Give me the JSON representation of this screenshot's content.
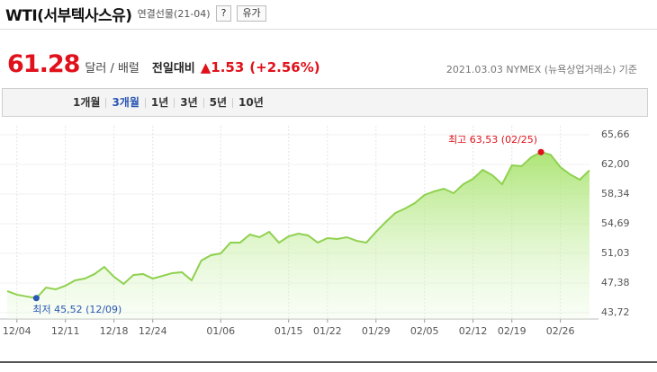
{
  "header": {
    "title": "WTI(서부텍사스유)",
    "subtitle": "연결선물(21-04)",
    "help": "?",
    "link": "유가"
  },
  "price": {
    "value": "61.28",
    "unit": "달러 / 배럴",
    "change_label": "전일대비",
    "change": "▲1.53",
    "change_pct": "(+2.56%)",
    "date": "2021.03.03",
    "source": "NYMEX (뉴욕상업거래소) 기준"
  },
  "tabs": [
    "1개월",
    "3개월",
    "1년",
    "3년",
    "5년",
    "10년"
  ],
  "active_tab": "3개월",
  "chart_data": {
    "type": "area",
    "categories": [
      null,
      "12/04",
      null,
      null,
      null,
      null,
      "12/11",
      null,
      null,
      null,
      null,
      "12/18",
      null,
      null,
      null,
      "12/24",
      null,
      null,
      null,
      null,
      null,
      null,
      "01/06",
      null,
      null,
      null,
      null,
      null,
      null,
      "01/15",
      null,
      null,
      null,
      "01/22",
      null,
      null,
      null,
      null,
      "01/29",
      null,
      null,
      null,
      null,
      "02/05",
      null,
      null,
      null,
      null,
      "02/12",
      null,
      null,
      null,
      "02/19",
      null,
      null,
      null,
      null,
      "02/26",
      null,
      null,
      null
    ],
    "series": [
      {
        "color": "#8fd14f",
        "values": [
          46.38,
          45.94,
          45.72,
          45.52,
          46.82,
          46.6,
          47.05,
          47.71,
          47.93,
          48.49,
          49.37,
          48.15,
          47.27,
          48.37,
          48.49,
          47.93,
          48.26,
          48.6,
          48.71,
          47.71,
          50.15,
          50.81,
          51.03,
          52.36,
          52.36,
          53.36,
          53.03,
          53.69,
          52.36,
          53.14,
          53.47,
          53.25,
          52.36,
          52.92,
          52.81,
          53.03,
          52.59,
          52.36,
          53.69,
          54.91,
          56.02,
          56.57,
          57.24,
          58.24,
          58.68,
          59.01,
          58.46,
          59.57,
          60.23,
          61.34,
          60.67,
          59.57,
          61.89,
          61.78,
          62.9,
          63.53,
          63.2,
          61.67,
          60.78,
          60.12,
          61.28
        ]
      }
    ],
    "ylim": [
      43.72,
      65.66
    ],
    "yticks": [
      {
        "value": 43.72,
        "label": "43,72"
      },
      {
        "value": 47.38,
        "label": "47,38"
      },
      {
        "value": 51.03,
        "label": "51,03"
      },
      {
        "value": 54.69,
        "label": "54,69"
      },
      {
        "value": 58.34,
        "label": "58,34"
      },
      {
        "value": 62,
        "label": "62,00"
      },
      {
        "value": 65.66,
        "label": "65,66"
      }
    ],
    "max_label": "최고 63,53 (02/25)",
    "min_label": "최저 45,52 (12/09)",
    "max_index": 55,
    "min_index": 3,
    "grid": true
  }
}
